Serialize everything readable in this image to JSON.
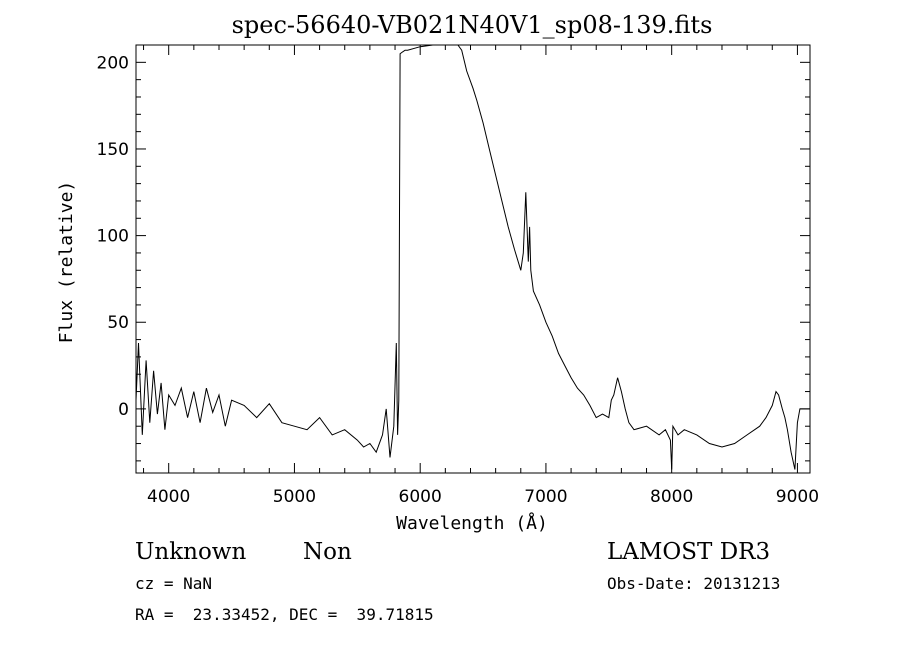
{
  "chart_data": {
    "type": "line",
    "title": "spec-56640-VB021N40V1_sp08-139.fits",
    "xlabel": "Wavelength (Å)",
    "ylabel": "Flux (relative)",
    "xlim": [
      3740,
      9100
    ],
    "ylim": [
      -37,
      210
    ],
    "x_ticks": [
      4000,
      5000,
      6000,
      7000,
      8000,
      9000
    ],
    "y_ticks": [
      0,
      50,
      100,
      150,
      200
    ],
    "grid": false,
    "legend": "none",
    "series": [
      {
        "x": [
          3740,
          3760,
          3790,
          3820,
          3850,
          3880,
          3910,
          3940,
          3970,
          4000,
          4050,
          4100,
          4150,
          4200,
          4250,
          4300,
          4350,
          4400,
          4450,
          4500,
          4600,
          4700,
          4800,
          4900,
          5000,
          5100,
          5200,
          5300,
          5400,
          5500,
          5550,
          5600,
          5650,
          5700,
          5730,
          5760,
          5790,
          5810,
          5820,
          5830,
          5840,
          5860,
          5880,
          5900,
          6000,
          6100,
          6200,
          6270,
          6300,
          6330,
          6370,
          6420,
          6450,
          6500,
          6550,
          6600,
          6650,
          6700,
          6750,
          6800,
          6820,
          6840,
          6860,
          6870,
          6880,
          6900,
          6950,
          7000,
          7050,
          7100,
          7150,
          7200,
          7250,
          7300,
          7350,
          7400,
          7450,
          7500,
          7520,
          7540,
          7570,
          7600,
          7630,
          7660,
          7700,
          7800,
          7900,
          7950,
          7990,
          8000,
          8010,
          8050,
          8100,
          8200,
          8300,
          8400,
          8500,
          8600,
          8700,
          8750,
          8800,
          8830,
          8850,
          8880,
          8900,
          8920,
          8950,
          8980,
          9000,
          9020,
          9040,
          9060,
          9100
        ],
        "y": [
          5,
          38,
          -15,
          28,
          -8,
          22,
          -3,
          15,
          -12,
          8,
          2,
          12,
          -5,
          10,
          -8,
          12,
          -2,
          8,
          -10,
          5,
          2,
          -5,
          3,
          -8,
          -10,
          -12,
          -5,
          -15,
          -12,
          -18,
          -22,
          -20,
          -25,
          -15,
          0,
          -28,
          -10,
          38,
          -15,
          5,
          205,
          206,
          207,
          207,
          209,
          210,
          211,
          210,
          211,
          207,
          195,
          185,
          178,
          165,
          150,
          135,
          120,
          105,
          92,
          80,
          90,
          125,
          85,
          105,
          80,
          68,
          60,
          50,
          42,
          32,
          25,
          18,
          12,
          8,
          2,
          -5,
          -3,
          -5,
          5,
          8,
          18,
          10,
          0,
          -8,
          -12,
          -10,
          -15,
          -12,
          -18,
          -35,
          -10,
          -15,
          -12,
          -15,
          -20,
          -22,
          -20,
          -15,
          -10,
          -5,
          2,
          10,
          8,
          0,
          -5,
          -12,
          -25,
          -35,
          -8,
          0,
          0,
          0,
          0
        ]
      }
    ]
  },
  "annotations": {
    "object_class": "Unknown",
    "object_subclass": "Non",
    "survey": "LAMOST DR3",
    "redshift": "cz = NaN",
    "obs_date": "Obs-Date: 20131213",
    "coords": "RA =  23.33452, DEC =  39.71815"
  }
}
